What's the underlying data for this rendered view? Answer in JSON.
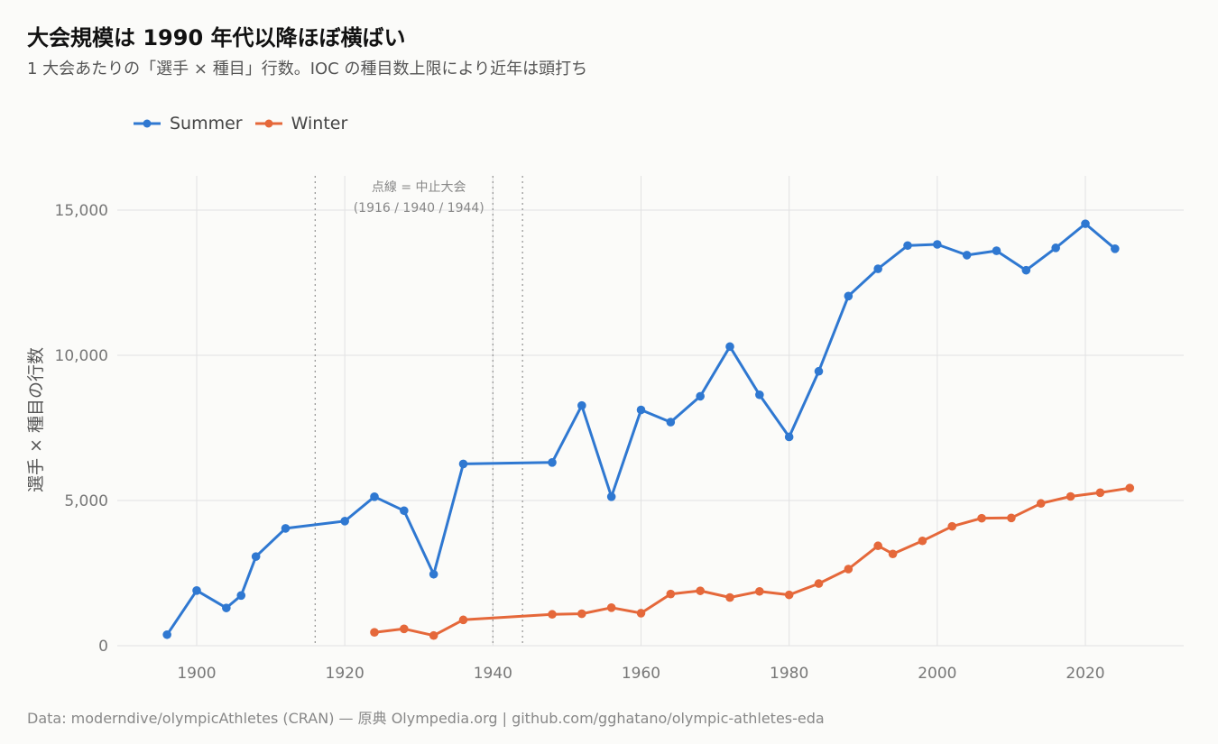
{
  "title": "大会規模は 1990 年代以降ほぼ横ばい",
  "subtitle": "1 大会あたりの「選手 × 種目」行数。IOC の種目数上限により近年は頭打ち",
  "caption": "Data: moderndive/olympicAthletes (CRAN) — 原典 Olympedia.org | github.com/gghatano/olympic-athletes-eda",
  "colors": {
    "summer": "#2f78d1",
    "winter": "#e5683a",
    "grid": "#e2e2e2",
    "vline": "#999999"
  },
  "chart_data": {
    "type": "line",
    "title": "大会規模は 1990 年代以降ほぼ横ばい",
    "ylabel": "選手 × 種目の行数",
    "xlabel": "",
    "xlim": [
      1889,
      2032
    ],
    "ylim": [
      0,
      15000
    ],
    "x_ticks": [
      1900,
      1920,
      1940,
      1960,
      1980,
      2000,
      2020
    ],
    "x_tick_labels": [
      "1900",
      "1920",
      "1940",
      "1960",
      "1980",
      "2000",
      "2020"
    ],
    "y_ticks": [
      0,
      5000,
      10000,
      15000
    ],
    "y_tick_labels": [
      "0",
      "5,000",
      "10,000",
      "15,000"
    ],
    "grid": true,
    "legend_position": "top-left",
    "vlines": [
      1916,
      1940,
      1944
    ],
    "annotation": {
      "line1": "点線 = 中止大会",
      "line2": "(1916 / 1940 / 1944)"
    },
    "series": [
      {
        "name": "Summer",
        "x": [
          1896,
          1900,
          1904,
          1906,
          1908,
          1912,
          1920,
          1924,
          1928,
          1932,
          1936,
          1948,
          1952,
          1956,
          1960,
          1964,
          1968,
          1972,
          1976,
          1980,
          1984,
          1988,
          1992,
          1996,
          2000,
          2004,
          2008,
          2012,
          2016,
          2020,
          2024
        ],
        "y": [
          380,
          1900,
          1300,
          1730,
          3070,
          4040,
          4290,
          5130,
          4650,
          2460,
          6260,
          6310,
          8270,
          5130,
          8120,
          7700,
          8590,
          10300,
          8640,
          7190,
          9450,
          12040,
          12980,
          13780,
          13820,
          13450,
          13600,
          12930,
          13700,
          14530,
          13670
        ]
      },
      {
        "name": "Winter",
        "x": [
          1924,
          1928,
          1932,
          1936,
          1948,
          1952,
          1956,
          1960,
          1964,
          1968,
          1972,
          1976,
          1980,
          1984,
          1988,
          1992,
          1994,
          1998,
          2002,
          2006,
          2010,
          2014,
          2018,
          2022,
          2026
        ],
        "y": [
          460,
          580,
          350,
          890,
          1080,
          1100,
          1310,
          1120,
          1780,
          1890,
          1660,
          1870,
          1750,
          2140,
          2640,
          3440,
          3160,
          3610,
          4110,
          4390,
          4400,
          4900,
          5140,
          5270,
          5430
        ]
      }
    ]
  }
}
